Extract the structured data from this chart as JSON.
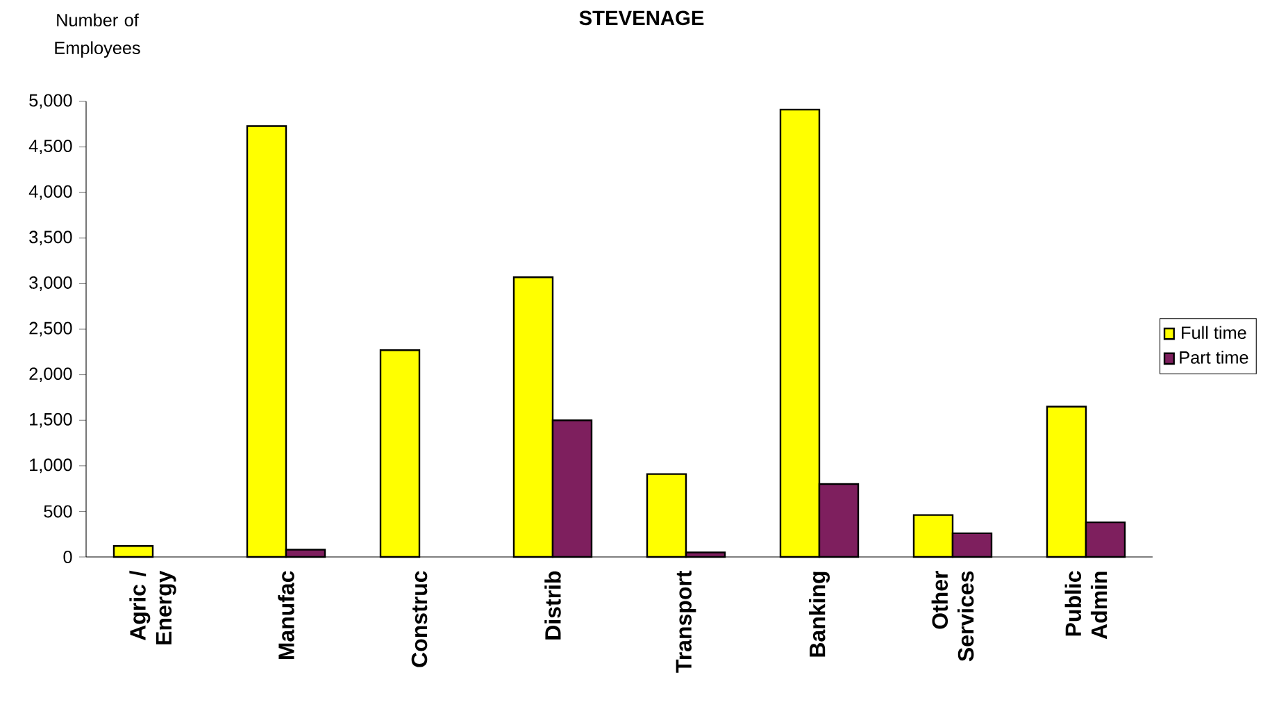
{
  "chart_data": {
    "type": "bar",
    "title": "STEVENAGE",
    "ylabel": "Number of Employees",
    "categories": [
      "Agric / Energy",
      "Manufac",
      "Construc",
      "Distrib",
      "Transport",
      "Banking",
      "Other Services",
      "Public Admin"
    ],
    "series": [
      {
        "name": "Full time",
        "color": "#ffff00",
        "values": [
          120,
          4730,
          2270,
          3070,
          910,
          4910,
          460,
          1650
        ]
      },
      {
        "name": "Part time",
        "color": "#7e1f5e",
        "values": [
          null,
          80,
          null,
          1500,
          50,
          800,
          260,
          380
        ]
      }
    ],
    "ylim": [
      0,
      5000
    ],
    "yticks": [
      0,
      500,
      {
        "value": 1000,
        "label": "1,000"
      },
      {
        "value": 1500,
        "label": "1,500"
      },
      {
        "value": 2000,
        "label": "2,000"
      },
      {
        "value": 2500,
        "label": "2,500"
      },
      {
        "value": 3000,
        "label": "3,000"
      },
      {
        "value": 3500,
        "label": "3,500"
      },
      {
        "value": 4000,
        "label": "4,000"
      },
      {
        "value": 4500,
        "label": "4,500"
      },
      {
        "value": 5000,
        "label": "5,000"
      }
    ],
    "legend": "right",
    "grid": false
  }
}
